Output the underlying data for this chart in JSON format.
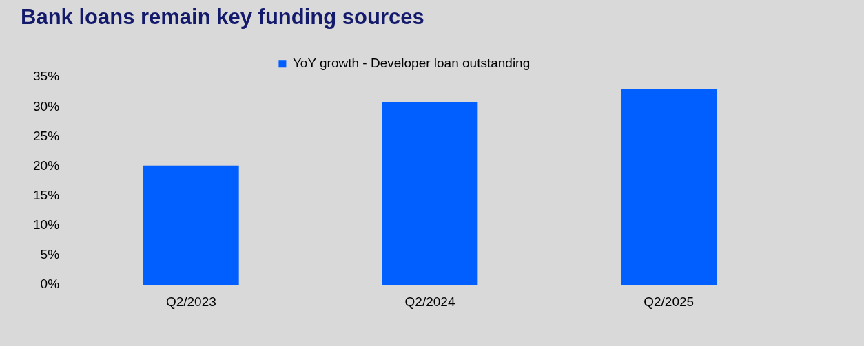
{
  "chart_data": {
    "type": "bar",
    "title": "Bank loans remain key funding sources",
    "categories": [
      "Q2/2023",
      "Q2/2024",
      "Q2/2025"
    ],
    "series": [
      {
        "name": "YoY growth - Developer loan outstanding",
        "color": "#005ffe",
        "values": [
          20.1,
          30.8,
          33.0
        ]
      }
    ],
    "ylim": [
      0,
      35
    ],
    "yticks": [
      {
        "value": 0,
        "label": "0%"
      },
      {
        "value": 5,
        "label": "5%"
      },
      {
        "value": 10,
        "label": "10%"
      },
      {
        "value": 15,
        "label": "15%"
      },
      {
        "value": 20,
        "label": "20%"
      },
      {
        "value": 25,
        "label": "25%"
      },
      {
        "value": 30,
        "label": "30%"
      },
      {
        "value": 35,
        "label": "35%"
      }
    ],
    "grid": false,
    "legend": "top"
  }
}
